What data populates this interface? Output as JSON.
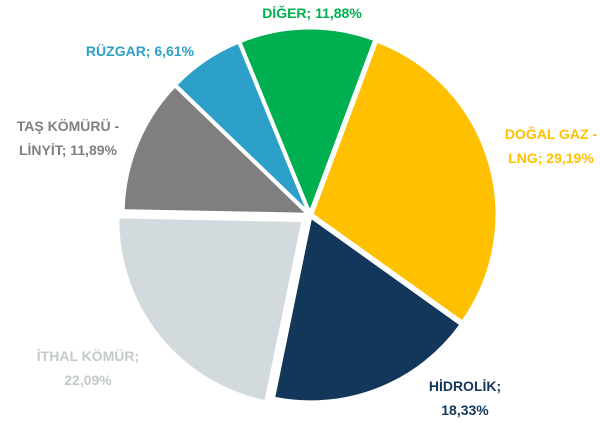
{
  "chart_data": {
    "type": "pie",
    "values": [
      29.19,
      18.33,
      22.09,
      11.89,
      6.61,
      11.88
    ],
    "value_labels": [
      [
        "DOĞAL GAZ -",
        "LNG; 29,19%"
      ],
      [
        "HİDROLİK;",
        "18,33%"
      ],
      [
        "İTHAL KÖMÜR;",
        "22,09%"
      ],
      [
        "TAŞ KÖMÜRÜ -",
        "LİNYİT; 11,89%"
      ],
      [
        "RÜZGAR; 6,61%"
      ],
      [
        "DİĞER; 11,88%"
      ]
    ],
    "colors": [
      "#FFC000",
      "#12375A",
      "#D3DADD",
      "#7F7F7F",
      "#2CA0C8",
      "#00B050"
    ],
    "label_colors": [
      "#FFC000",
      "#12375A",
      "#C4C9CC",
      "#7F7F7F",
      "#2CA0C8",
      "#00B050"
    ]
  }
}
